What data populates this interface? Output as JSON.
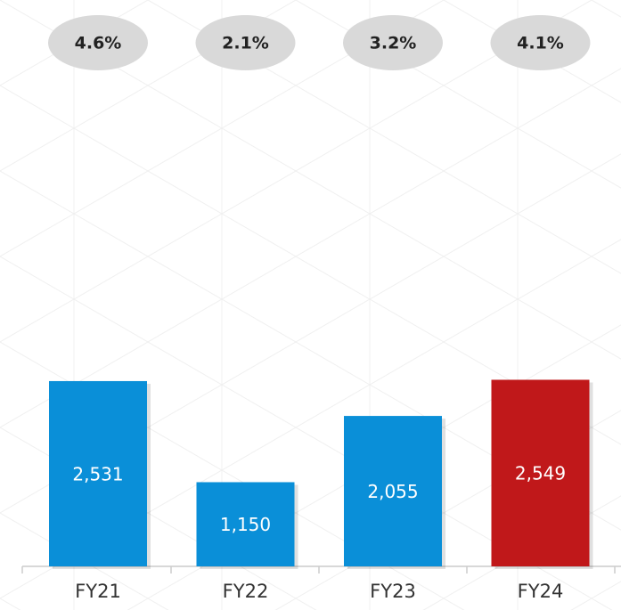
{
  "chart_data": {
    "type": "bar",
    "annotations": [
      "4.6%",
      "2.1%",
      "3.2%",
      "4.1%"
    ],
    "categories": [
      "FY21",
      "FY22",
      "FY23",
      "FY24"
    ],
    "values": [
      2531,
      1150,
      2055,
      2549
    ],
    "value_labels": [
      "2,531",
      "1,150",
      "2,055",
      "2,549"
    ],
    "colors": [
      "#0a8fd8",
      "#0a8fd8",
      "#0a8fd8",
      "#c0181a"
    ]
  }
}
